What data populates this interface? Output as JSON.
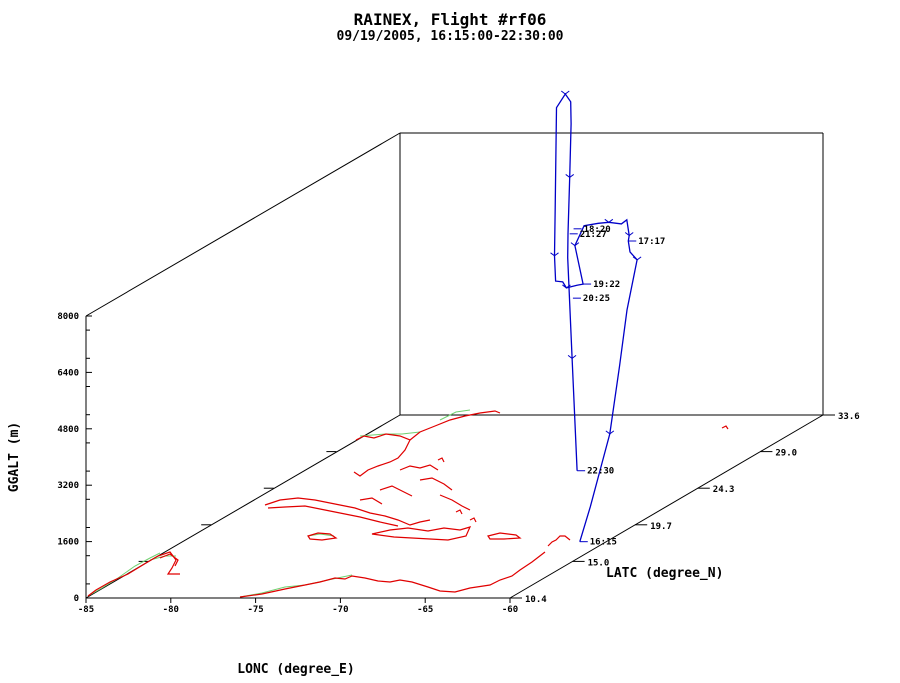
{
  "chart_data": {
    "type": "line",
    "projection": "3d",
    "title": "RAINEX, Flight #rf06",
    "subtitle": "09/19/2005, 16:15:00-22:30:00",
    "xlabel": "LONC (degree_E)",
    "ylabel": "LATC (degree_N)",
    "zlabel": "GGALT (m)",
    "xlim": [
      -85,
      -60
    ],
    "ylim": [
      10.4,
      33.6
    ],
    "zlim": [
      0,
      8000
    ],
    "x_ticks": [
      "-85",
      "-80",
      "-75",
      "-70",
      "-65",
      "-60"
    ],
    "y_ticks": [
      "10.4",
      "15.0",
      "19.7",
      "24.3",
      "29.0",
      "33.6"
    ],
    "z_ticks": [
      "0",
      "1600",
      "3200",
      "4800",
      "6400",
      "8000"
    ],
    "colors": {
      "track": "#0000c8",
      "coastline": "#e00000",
      "borders": "#70d070",
      "axes": "#000000"
    },
    "series": [
      {
        "points": [
          [
            -60.5,
            16.2,
            300
          ],
          [
            -60.2,
            16.6,
            1200
          ],
          [
            -60.0,
            17.8,
            3000
          ],
          [
            -59.9,
            18.4,
            4800
          ],
          [
            -60.1,
            19.2,
            6200
          ],
          [
            -60.3,
            20.2,
            7400
          ],
          [
            -60.8,
            20.3,
            7600
          ],
          [
            -61.3,
            20.8,
            7800
          ],
          [
            -61.8,
            21.5,
            7800
          ],
          [
            -62.1,
            21.7,
            8200
          ],
          [
            -62.9,
            22.3,
            7950
          ],
          [
            -63.8,
            22.5,
            7950
          ],
          [
            -64.5,
            22.6,
            7900
          ],
          [
            -65.1,
            22.3,
            7900
          ],
          [
            -65.4,
            22.0,
            7400
          ],
          [
            -64.6,
            21.6,
            6400
          ],
          [
            -65.2,
            21.9,
            6300
          ],
          [
            -65.9,
            22.0,
            6200
          ],
          [
            -66.2,
            22.1,
            6350
          ],
          [
            -66.7,
            22.2,
            6350
          ],
          [
            -67.0,
            22.5,
            7000
          ],
          [
            -67.2,
            22.8,
            8300
          ],
          [
            -67.6,
            23.4,
            11000
          ],
          [
            -67.4,
            23.8,
            11300
          ],
          [
            -67.0,
            23.7,
            11100
          ],
          [
            -66.9,
            23.6,
            10500
          ],
          [
            -66.9,
            23.5,
            9000
          ],
          [
            -67.0,
            23.5,
            7400
          ],
          [
            -67.1,
            23.6,
            6700
          ],
          [
            -67.0,
            23.8,
            3800
          ],
          [
            -67.1,
            24.3,
            500
          ]
        ]
      }
    ],
    "time_labels": [
      {
        "text": "16:15",
        "lon": -60.5,
        "lat": 16.2,
        "alt": 300
      },
      {
        "text": "17:17",
        "lon": -61.3,
        "lat": 20.8,
        "alt": 7800
      },
      {
        "text": "18:20",
        "lon": -65.4,
        "lat": 21.9,
        "alt": 7900
      },
      {
        "text": "19:22",
        "lon": -64.6,
        "lat": 21.6,
        "alt": 6400
      },
      {
        "text": "20:25",
        "lon": -65.2,
        "lat": 21.6,
        "alt": 6000
      },
      {
        "text": "21:27",
        "lon": -66.9,
        "lat": 23.5,
        "alt": 7400
      },
      {
        "text": "22:30",
        "lon": -67.1,
        "lat": 24.3,
        "alt": 500
      }
    ]
  }
}
